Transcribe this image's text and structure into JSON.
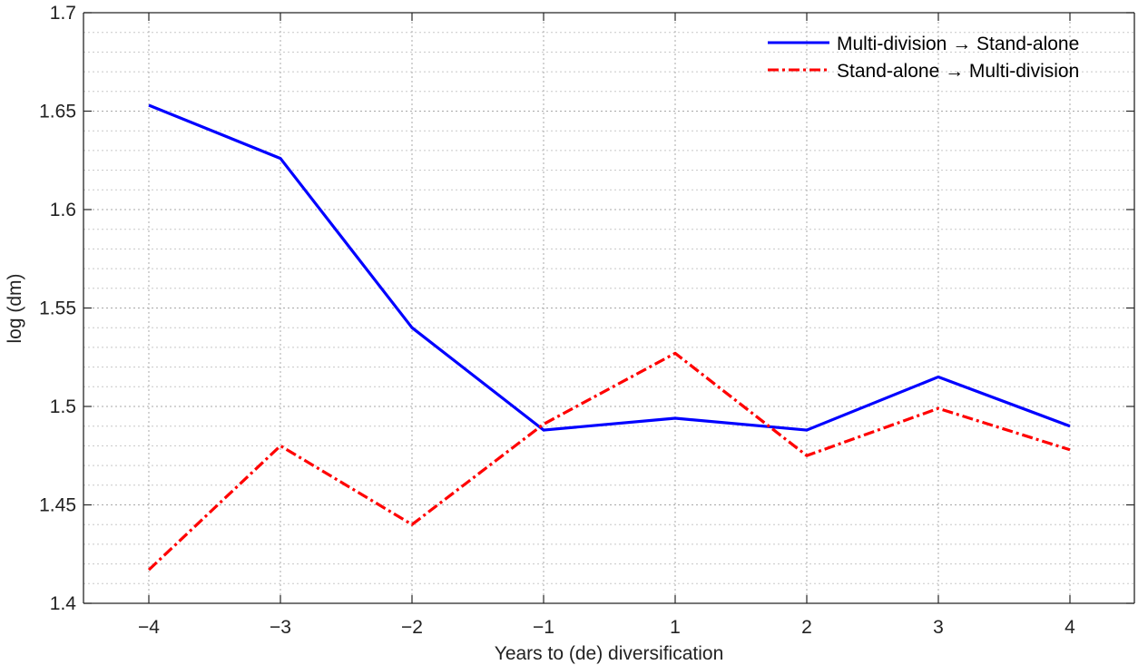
{
  "chart_data": {
    "type": "line",
    "title": "",
    "xlabel": "Years to (de) diversification",
    "ylabel": "log (dm)",
    "categories": [
      "−4",
      "−3",
      "−2",
      "−1",
      "1",
      "2",
      "3",
      "4"
    ],
    "ylim": [
      1.4,
      1.7
    ],
    "yticks": [
      "1.4",
      "1.45",
      "1.5",
      "1.55",
      "1.6",
      "1.65",
      "1.7"
    ],
    "grid": true,
    "minor_grid": true,
    "legend_position": "top-right",
    "series": [
      {
        "name": "Multi-division → Stand-alone",
        "color": "#0000FF",
        "style": "solid",
        "values": [
          1.653,
          1.626,
          1.54,
          1.488,
          1.494,
          1.488,
          1.515,
          1.49
        ]
      },
      {
        "name": "Stand-alone → Multi-division",
        "color": "#FF0000",
        "style": "dash-dot",
        "values": [
          1.417,
          1.48,
          1.44,
          1.491,
          1.527,
          1.475,
          1.499,
          1.478
        ]
      }
    ]
  }
}
